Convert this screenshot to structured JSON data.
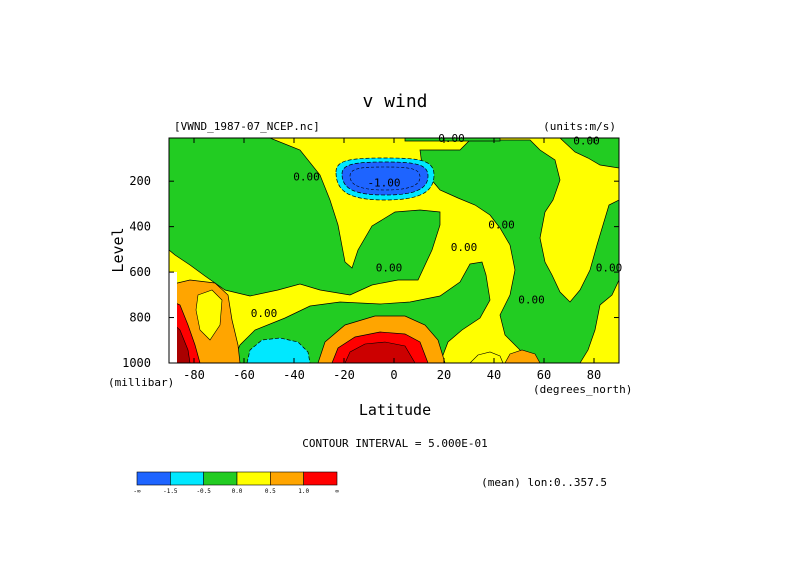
{
  "chart_data": {
    "type": "contour",
    "title": "v wind",
    "source": "[VWND_1987-07_NCEP.nc]",
    "units": "(units:m/s)",
    "xlabel": "Latitude",
    "x_unit": "(degrees_north)",
    "ylabel": "Level",
    "y_unit": "(millibar)",
    "xlim": [
      -90,
      90
    ],
    "ylim": [
      1000,
      10
    ],
    "x_ticks": [
      -80,
      -60,
      -40,
      -20,
      0,
      20,
      40,
      60,
      80
    ],
    "x_tick_labels": [
      "-80",
      "-60",
      "-40",
      "-20",
      "0",
      "20",
      "40",
      "60",
      "80"
    ],
    "y_ticks": [
      200,
      400,
      600,
      800,
      1000
    ],
    "y_tick_labels": [
      "200",
      "400",
      "600",
      "800",
      "1000"
    ],
    "contour_interval_text": "CONTOUR INTERVAL = 5.000E-01",
    "mean_text": "(mean) lon:0..357.5",
    "contour_labels": [
      {
        "text": "0.00",
        "lat": 23,
        "lev": 10
      },
      {
        "text": "0.00",
        "lat": 77,
        "lev": 20
      },
      {
        "text": "0.00",
        "lat": -35,
        "lev": 180
      },
      {
        "text": "-1.00",
        "lat": -4,
        "lev": 205
      },
      {
        "text": "0.00",
        "lat": 43,
        "lev": 390
      },
      {
        "text": "0.00",
        "lat": 28,
        "lev": 490
      },
      {
        "text": "0.00",
        "lat": -2,
        "lev": 580
      },
      {
        "text": "0.00",
        "lat": 86,
        "lev": 580
      },
      {
        "text": "0.00",
        "lat": 55,
        "lev": 720
      },
      {
        "text": "0.00",
        "lat": -52,
        "lev": 780
      }
    ],
    "colorbar": {
      "colors": [
        "#1e64ff",
        "#00e8ff",
        "#22cc22",
        "#ffff00",
        "#ffa500",
        "#ff0000"
      ],
      "labels": [
        "-∞",
        "-1.5",
        "-0.5",
        "0.0",
        "0.5",
        "1.0",
        "∞"
      ]
    },
    "features": [
      {
        "name": "negative-jet-core",
        "min": -2.0,
        "lat": -8,
        "lev": 190
      },
      {
        "name": "positive-surface-core",
        "max": 2.5,
        "lat": -10,
        "lev": 980
      },
      {
        "name": "negative-southern-surface",
        "min": -1.0,
        "lat": -55,
        "lev": 970
      },
      {
        "name": "positive-antarctic-surface",
        "max": 2.0,
        "lat": -85,
        "lev": 950
      }
    ]
  }
}
